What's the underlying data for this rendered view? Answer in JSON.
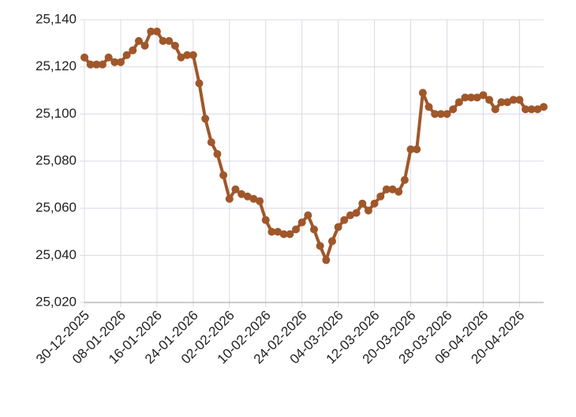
{
  "chart_data": {
    "type": "line",
    "categories": [
      "30-12-2025",
      null,
      null,
      null,
      null,
      null,
      "08-01-2026",
      null,
      null,
      null,
      null,
      null,
      "16-01-2026",
      null,
      null,
      null,
      null,
      null,
      "24-01-2026",
      null,
      null,
      null,
      null,
      null,
      "02-02-2026",
      null,
      null,
      null,
      null,
      null,
      "10-02-2026",
      null,
      null,
      null,
      null,
      null,
      "24-02-2026",
      null,
      null,
      null,
      null,
      null,
      "04-03-2026",
      null,
      null,
      null,
      null,
      null,
      "12-03-2026",
      null,
      null,
      null,
      null,
      null,
      "20-03-2026",
      null,
      null,
      null,
      null,
      null,
      "28-03-2026",
      null,
      null,
      null,
      null,
      null,
      "06-04-2026",
      null,
      null,
      null,
      null,
      null,
      "20-04-2026",
      null,
      null,
      null,
      null
    ],
    "values": [
      25124,
      25121,
      25121,
      25121,
      25124,
      25122,
      25122,
      25125,
      25127,
      25131,
      25129,
      25135,
      25135,
      25131,
      25131,
      25129,
      25124,
      25125,
      25125,
      25113,
      25098,
      25088,
      25083,
      25074,
      25064,
      25068,
      25066,
      25065,
      25064,
      25063,
      25055,
      25050,
      25050,
      25049,
      25049,
      25051,
      25054,
      25057,
      25051,
      25044,
      25038,
      25046,
      25052,
      25055,
      25057,
      25058,
      25062,
      25059,
      25062,
      25065,
      25068,
      25068,
      25067,
      25072,
      25085,
      25085,
      25109,
      25103,
      25100,
      25100,
      25100,
      25102,
      25105,
      25107,
      25107,
      25107,
      25108,
      25106,
      25102,
      25105,
      25105,
      25106,
      25106,
      25102,
      25102,
      25102,
      25103
    ],
    "color": "#a0572a",
    "ylim": [
      25020,
      25140
    ],
    "yticks": [
      {
        "value": 25020,
        "label": "25,020"
      },
      {
        "value": 25040,
        "label": "25,040"
      },
      {
        "value": 25060,
        "label": "25,060"
      },
      {
        "value": 25080,
        "label": "25,080"
      },
      {
        "value": 25100,
        "label": "25,100"
      },
      {
        "value": 25120,
        "label": "25,120"
      },
      {
        "value": 25140,
        "label": "25,140"
      }
    ],
    "grid": true
  }
}
